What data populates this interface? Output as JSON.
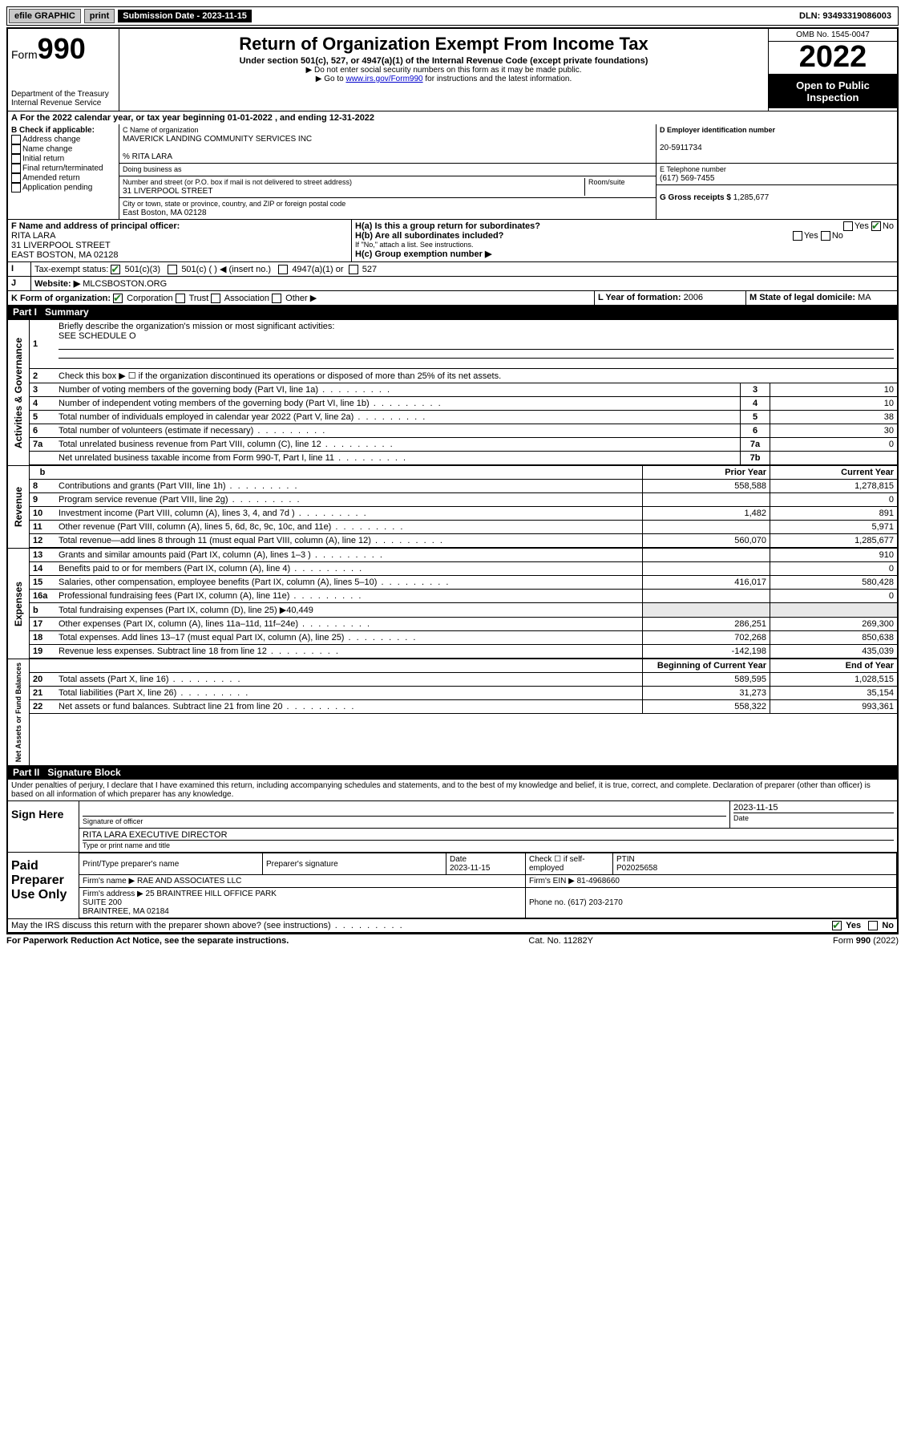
{
  "topbar": {
    "efile": "efile GRAPHIC",
    "print": "print",
    "subdate_label": "Submission Date - 2023-11-15",
    "dln": "DLN: 93493319086003"
  },
  "header": {
    "form_prefix": "Form",
    "form_num": "990",
    "dept": "Department of the Treasury",
    "irs": "Internal Revenue Service",
    "title": "Return of Organization Exempt From Income Tax",
    "subtitle": "Under section 501(c), 527, or 4947(a)(1) of the Internal Revenue Code (except private foundations)",
    "note1": "▶ Do not enter social security numbers on this form as it may be made public.",
    "note2_pre": "▶ Go to ",
    "note2_link": "www.irs.gov/Form990",
    "note2_post": " for instructions and the latest information.",
    "omb": "OMB No. 1545-0047",
    "year": "2022",
    "open": "Open to Public Inspection"
  },
  "a_line": "For the 2022 calendar year, or tax year beginning 01-01-2022   , and ending 12-31-2022",
  "b": {
    "label": "B Check if applicable:",
    "opts": [
      "Address change",
      "Name change",
      "Initial return",
      "Final return/terminated",
      "Amended return",
      "Application pending"
    ]
  },
  "c": {
    "name_label": "C Name of organization",
    "name": "MAVERICK LANDING COMMUNITY SERVICES INC",
    "care_of": "% RITA LARA",
    "dba_label": "Doing business as",
    "street_label": "Number and street (or P.O. box if mail is not delivered to street address)",
    "room_label": "Room/suite",
    "street": "31 LIVERPOOL STREET",
    "city_label": "City or town, state or province, country, and ZIP or foreign postal code",
    "city": "East Boston, MA  02128"
  },
  "d": {
    "label": "D Employer identification number",
    "val": "20-5911734"
  },
  "e": {
    "label": "E Telephone number",
    "val": "(617) 569-7455"
  },
  "g": {
    "label": "G Gross receipts $",
    "val": "1,285,677"
  },
  "f": {
    "label": "F Name and address of principal officer:",
    "name": "RITA LARA",
    "addr1": "31 LIVERPOOL STREET",
    "addr2": "EAST BOSTON, MA  02128"
  },
  "h": {
    "ha": "H(a)  Is this a group return for subordinates?",
    "hb": "H(b)  Are all subordinates included?",
    "hb_note": "If \"No,\" attach a list. See instructions.",
    "hc": "H(c)  Group exemption number ▶",
    "yes": "Yes",
    "no": "No"
  },
  "i": {
    "label": "Tax-exempt status:",
    "o1": "501(c)(3)",
    "o2": "501(c) (  ) ◀ (insert no.)",
    "o3": "4947(a)(1) or",
    "o4": "527"
  },
  "j": {
    "label": "Website: ▶",
    "val": "MLCSBOSTON.ORG"
  },
  "k": {
    "label": "K Form of organization:",
    "o1": "Corporation",
    "o2": "Trust",
    "o3": "Association",
    "o4": "Other ▶"
  },
  "l": {
    "label": "L Year of formation:",
    "val": "2006"
  },
  "m": {
    "label": "M State of legal domicile:",
    "val": "MA"
  },
  "part1": {
    "hdr": "Part I",
    "title": "Summary"
  },
  "summary": {
    "q1": "Briefly describe the organization's mission or most significant activities:",
    "q1v": "SEE SCHEDULE O",
    "q2": "Check this box ▶ ☐  if the organization discontinued its operations or disposed of more than 25% of its net assets.",
    "rowsA": [
      {
        "n": "3",
        "t": "Number of voting members of the governing body (Part VI, line 1a)",
        "k": "3",
        "v": "10"
      },
      {
        "n": "4",
        "t": "Number of independent voting members of the governing body (Part VI, line 1b)",
        "k": "4",
        "v": "10"
      },
      {
        "n": "5",
        "t": "Total number of individuals employed in calendar year 2022 (Part V, line 2a)",
        "k": "5",
        "v": "38"
      },
      {
        "n": "6",
        "t": "Total number of volunteers (estimate if necessary)",
        "k": "6",
        "v": "30"
      },
      {
        "n": "7a",
        "t": "Total unrelated business revenue from Part VIII, column (C), line 12",
        "k": "7a",
        "v": "0"
      },
      {
        "n": "",
        "t": "Net unrelated business taxable income from Form 990-T, Part I, line 11",
        "k": "7b",
        "v": ""
      }
    ],
    "prior_hdr": "Prior Year",
    "curr_hdr": "Current Year",
    "rev": [
      {
        "n": "8",
        "t": "Contributions and grants (Part VIII, line 1h)",
        "p": "558,588",
        "c": "1,278,815"
      },
      {
        "n": "9",
        "t": "Program service revenue (Part VIII, line 2g)",
        "p": "",
        "c": "0"
      },
      {
        "n": "10",
        "t": "Investment income (Part VIII, column (A), lines 3, 4, and 7d )",
        "p": "1,482",
        "c": "891"
      },
      {
        "n": "11",
        "t": "Other revenue (Part VIII, column (A), lines 5, 6d, 8c, 9c, 10c, and 11e)",
        "p": "",
        "c": "5,971"
      },
      {
        "n": "12",
        "t": "Total revenue—add lines 8 through 11 (must equal Part VIII, column (A), line 12)",
        "p": "560,070",
        "c": "1,285,677"
      }
    ],
    "exp": [
      {
        "n": "13",
        "t": "Grants and similar amounts paid (Part IX, column (A), lines 1–3 )",
        "p": "",
        "c": "910"
      },
      {
        "n": "14",
        "t": "Benefits paid to or for members (Part IX, column (A), line 4)",
        "p": "",
        "c": "0"
      },
      {
        "n": "15",
        "t": "Salaries, other compensation, employee benefits (Part IX, column (A), lines 5–10)",
        "p": "416,017",
        "c": "580,428"
      },
      {
        "n": "16a",
        "t": "Professional fundraising fees (Part IX, column (A), line 11e)",
        "p": "",
        "c": "0"
      },
      {
        "n": "b",
        "t": "Total fundraising expenses (Part IX, column (D), line 25) ▶40,449",
        "p": "—",
        "c": "—"
      },
      {
        "n": "17",
        "t": "Other expenses (Part IX, column (A), lines 11a–11d, 11f–24e)",
        "p": "286,251",
        "c": "269,300"
      },
      {
        "n": "18",
        "t": "Total expenses. Add lines 13–17 (must equal Part IX, column (A), line 25)",
        "p": "702,268",
        "c": "850,638"
      },
      {
        "n": "19",
        "t": "Revenue less expenses. Subtract line 18 from line 12",
        "p": "-142,198",
        "c": "435,039"
      }
    ],
    "bal_hdr1": "Beginning of Current Year",
    "bal_hdr2": "End of Year",
    "bal": [
      {
        "n": "20",
        "t": "Total assets (Part X, line 16)",
        "p": "589,595",
        "c": "1,028,515"
      },
      {
        "n": "21",
        "t": "Total liabilities (Part X, line 26)",
        "p": "31,273",
        "c": "35,154"
      },
      {
        "n": "22",
        "t": "Net assets or fund balances. Subtract line 21 from line 20",
        "p": "558,322",
        "c": "993,361"
      }
    ],
    "rot_a": "Activities & Governance",
    "rot_r": "Revenue",
    "rot_e": "Expenses",
    "rot_n": "Net Assets or Fund Balances"
  },
  "part2": {
    "hdr": "Part II",
    "title": "Signature Block"
  },
  "perjury": "Under penalties of perjury, I declare that I have examined this return, including accompanying schedules and statements, and to the best of my knowledge and belief, it is true, correct, and complete. Declaration of preparer (other than officer) is based on all information of which preparer has any knowledge.",
  "sign": {
    "here": "Sign Here",
    "sig_officer": "Signature of officer",
    "date": "Date",
    "date_val": "2023-11-15",
    "name_title": "RITA LARA  EXECUTIVE DIRECTOR",
    "name_title_label": "Type or print name and title"
  },
  "paid": {
    "label": "Paid Preparer Use Only",
    "h1": "Print/Type preparer's name",
    "h2": "Preparer's signature",
    "h3": "Date",
    "h3v": "2023-11-15",
    "h4": "Check ☐ if self-employed",
    "h5": "PTIN",
    "h5v": "P02025658",
    "firm_name_l": "Firm's name    ▶",
    "firm_name": "RAE AND ASSOCIATES LLC",
    "firm_ein_l": "Firm's EIN ▶",
    "firm_ein": "81-4968660",
    "firm_addr_l": "Firm's address ▶",
    "firm_addr": "25 BRAINTREE HILL OFFICE PARK\nSUITE 200\nBRAINTREE, MA  02184",
    "phone_l": "Phone no.",
    "phone": "(617) 203-2170"
  },
  "irs_discuss": "May the IRS discuss this return with the preparer shown above? (see instructions)",
  "footer": {
    "left": "For Paperwork Reduction Act Notice, see the separate instructions.",
    "mid": "Cat. No. 11282Y",
    "right": "Form 990 (2022)"
  }
}
